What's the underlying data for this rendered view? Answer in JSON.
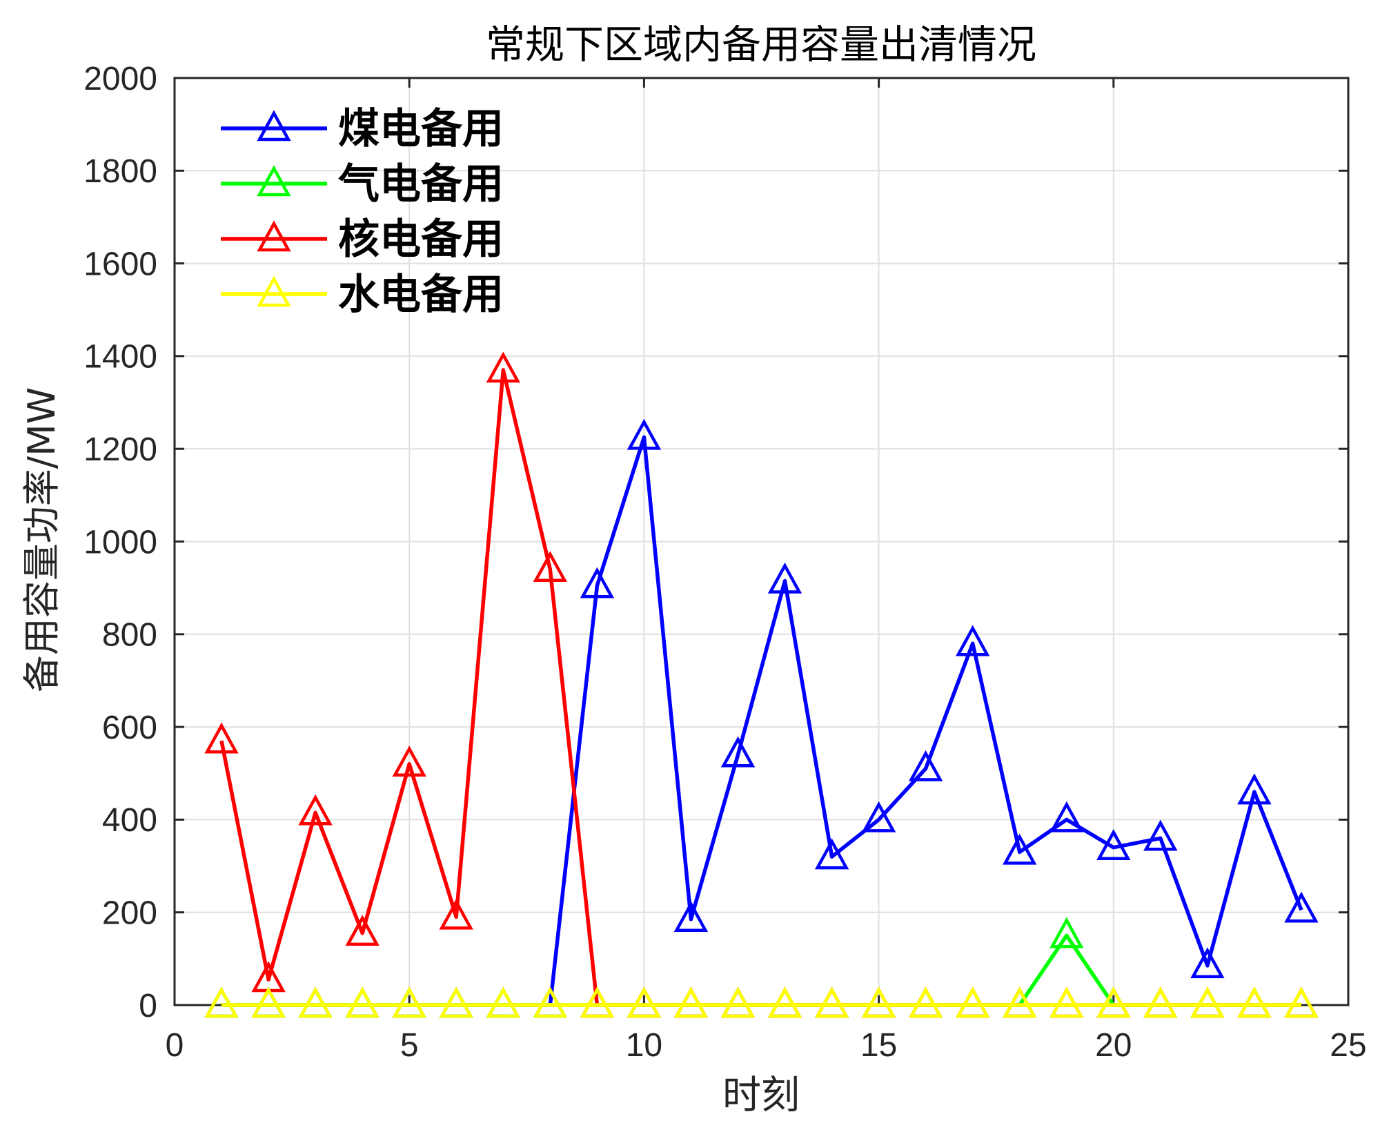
{
  "chart_data": {
    "type": "line",
    "title": "常规下区域内备用容量出清情况",
    "xlabel": "时刻",
    "ylabel": "备用容量功率/MW",
    "xlim": [
      0,
      25
    ],
    "ylim": [
      0,
      2000
    ],
    "xticks": [
      0,
      5,
      10,
      15,
      20,
      25
    ],
    "yticks": [
      0,
      200,
      400,
      600,
      800,
      1000,
      1200,
      1400,
      1600,
      1800,
      2000
    ],
    "grid": true,
    "legend": "top-left",
    "x": [
      1,
      2,
      3,
      4,
      5,
      6,
      7,
      8,
      9,
      10,
      11,
      12,
      13,
      14,
      15,
      16,
      17,
      18,
      19,
      20,
      21,
      22,
      23,
      24
    ],
    "series": [
      {
        "name": "煤电备用",
        "color": "#0000ff",
        "marker": "triangle-up",
        "values": [
          0,
          0,
          0,
          0,
          0,
          0,
          0,
          0,
          905,
          1225,
          185,
          540,
          915,
          320,
          400,
          510,
          780,
          330,
          400,
          340,
          360,
          85,
          460,
          205
        ]
      },
      {
        "name": "气电备用",
        "color": "#00ff00",
        "marker": "triangle-up",
        "values": [
          0,
          0,
          0,
          0,
          0,
          0,
          0,
          0,
          0,
          0,
          0,
          0,
          0,
          0,
          0,
          0,
          0,
          0,
          150,
          0,
          0,
          0,
          0,
          0
        ]
      },
      {
        "name": "核电备用",
        "color": "#ff0000",
        "marker": "triangle-up",
        "values": [
          570,
          55,
          415,
          155,
          520,
          190,
          1370,
          940,
          0,
          0,
          0,
          0,
          0,
          0,
          0,
          0,
          0,
          0,
          0,
          0,
          0,
          0,
          0,
          0
        ]
      },
      {
        "name": "水电备用",
        "color": "#ffff00",
        "marker": "triangle-up",
        "values": [
          0,
          0,
          0,
          0,
          0,
          0,
          0,
          0,
          0,
          0,
          0,
          0,
          0,
          0,
          0,
          0,
          0,
          0,
          0,
          0,
          0,
          0,
          0,
          0
        ]
      }
    ]
  }
}
